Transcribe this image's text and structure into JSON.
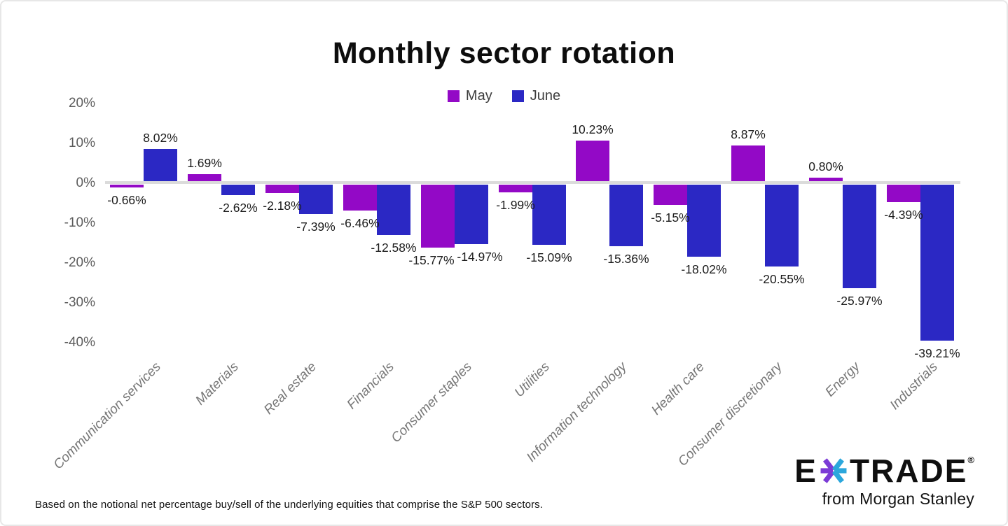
{
  "title": "Monthly sector rotation",
  "footnote": "Based on the notional net percentage buy/sell of the underlying equities that comprise the S&P 500 sectors.",
  "colors": {
    "may": "#9309C6",
    "june": "#2B28C4",
    "baseline": "#DBDBDB",
    "logo_purple": "#7B3BD6",
    "logo_teal": "#2BA7DC"
  },
  "logo": {
    "etrade_e": "E",
    "etrade_trade": "TRADE",
    "registered": "®",
    "tagline": "from Morgan Stanley"
  },
  "chart_data": {
    "type": "bar",
    "title": "Monthly sector rotation",
    "categories": [
      "Communication services",
      "Materials",
      "Real estate",
      "Financials",
      "Consumer staples",
      "Utilities",
      "Information technology",
      "Health care",
      "Consumer discretionary",
      "Energy",
      "Industrials"
    ],
    "series": [
      {
        "name": "May",
        "color": "#9309C6",
        "values": [
          -0.66,
          1.69,
          -2.18,
          -6.46,
          -15.77,
          -1.99,
          10.23,
          -5.15,
          8.87,
          0.8,
          -4.39
        ],
        "labels": [
          "-0.66%",
          "1.69%",
          "-2.18%",
          "-6.46%",
          "-15.77%",
          "-1.99%",
          "10.23%",
          "-5.15%",
          "8.87%",
          "0.80%",
          "-4.39%"
        ],
        "label_dx": [
          0,
          0,
          0,
          0,
          -9,
          0,
          0,
          0,
          0,
          0,
          0
        ]
      },
      {
        "name": "June",
        "color": "#2B28C4",
        "values": [
          8.02,
          -2.62,
          -7.39,
          -12.58,
          -14.97,
          -15.09,
          -15.36,
          -18.02,
          -20.55,
          -25.97,
          -39.21
        ],
        "labels": [
          "8.02%",
          "-2.62%",
          "-7.39%",
          "-12.58%",
          "-14.97%",
          "-15.09%",
          "-15.36%",
          "-18.02%",
          "-20.55%",
          "-25.97%",
          "-39.21%"
        ],
        "label_dx": [
          0,
          0,
          0,
          0,
          12,
          0,
          0,
          0,
          0,
          0,
          0
        ]
      }
    ],
    "y_ticks": [
      "20%",
      "10%",
      "0%",
      "-10%",
      "-20%",
      "-30%",
      "-40%"
    ],
    "y_tick_values": [
      20,
      10,
      0,
      -10,
      -20,
      -30,
      -40
    ],
    "ylim": [
      -40,
      20
    ],
    "xlabel": "",
    "ylabel": "",
    "grid": false,
    "legend_position": "top",
    "bar_orientation": "vertical",
    "value_labels_shown": true
  }
}
